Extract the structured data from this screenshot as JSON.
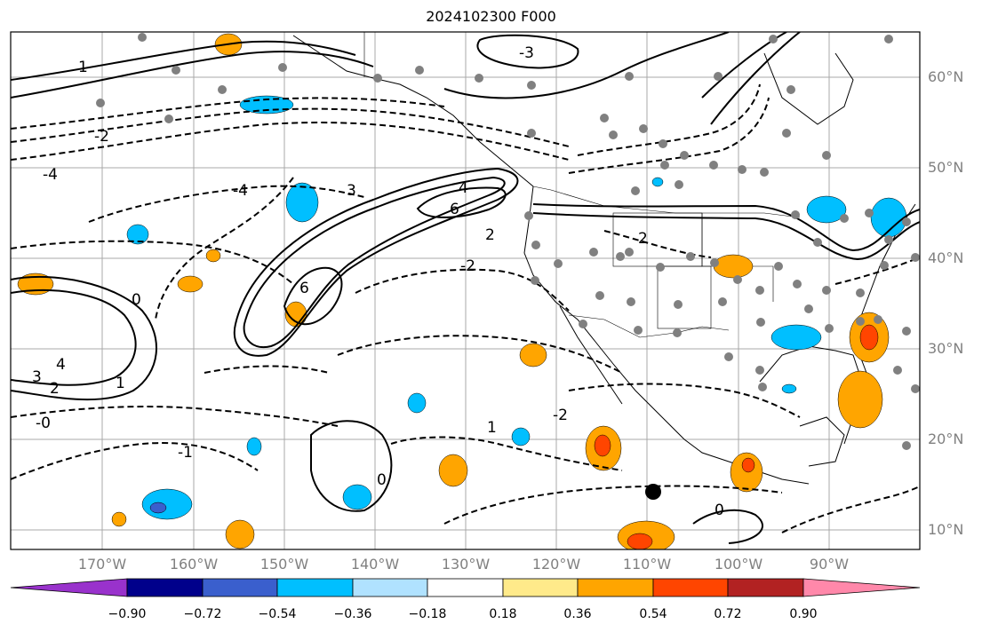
{
  "title": "2024102300 F000",
  "lat_labels": [
    "60°N",
    "50°N",
    "40°N",
    "30°N",
    "20°N",
    "10°N"
  ],
  "lon_labels": [
    "170°W",
    "160°W",
    "150°W",
    "140°W",
    "130°W",
    "120°W",
    "110°W",
    "100°W",
    "90°W"
  ],
  "colorbar": {
    "colors": [
      "#9932cc",
      "#00008b",
      "#3a5fcd",
      "#00bfff",
      "#b0e2ff",
      "#ffffff",
      "#ffea8a",
      "#ffa500",
      "#ff4500",
      "#b22222",
      "#ff88aa"
    ],
    "tick_labels": [
      "−0.90",
      "−0.72",
      "−0.54",
      "−0.36",
      "−0.18",
      "0.18",
      "0.36",
      "0.54",
      "0.72",
      "0.90"
    ]
  },
  "contour_labels": [
    "6",
    "6",
    "4",
    "4",
    "3",
    "3",
    "2",
    "2",
    "1",
    "1",
    "0",
    "0",
    "-2",
    "-4",
    "-1",
    "-2",
    "-3",
    "-4",
    "0",
    "1",
    "-2",
    "2",
    "-0"
  ]
}
